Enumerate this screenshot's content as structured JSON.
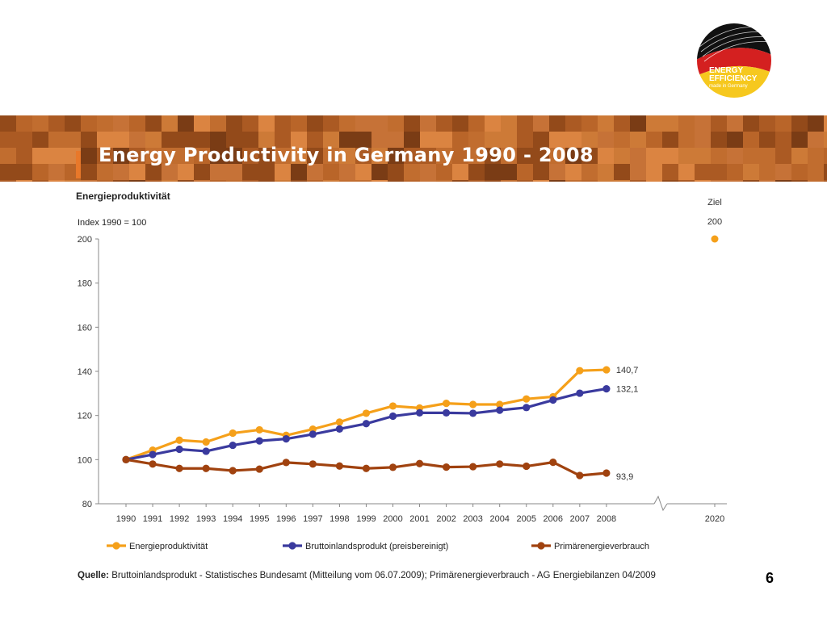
{
  "logo": {
    "line1": "ENERGY",
    "line2": "EFFICIENCY",
    "line3": "made in Germany"
  },
  "header": {
    "title": "Energy Productivity in Germany 1990 - 2008"
  },
  "page_number": "6",
  "source": {
    "label": "Quelle:",
    "text": "Bruttoinlandsprodukt - Statistisches Bundesamt (Mitteilung vom 06.07.2009); Primärenergieverbrauch - AG Energiebilanzen 04/2009"
  },
  "colors": {
    "banner": "#b8652a",
    "energieproduktivitaet": "#f5a01a",
    "bip": "#3a3a9e",
    "primaer": "#a0420f"
  },
  "chart_data": {
    "type": "line",
    "title": "Energieproduktivität",
    "subtitle": "Index 1990 = 100",
    "ylim": [
      80,
      200
    ],
    "yticks": [
      80,
      100,
      120,
      140,
      160,
      180,
      200
    ],
    "categories": [
      "1990",
      "1991",
      "1992",
      "1993",
      "1994",
      "1995",
      "1996",
      "1997",
      "1998",
      "1999",
      "2000",
      "2001",
      "2002",
      "2003",
      "2004",
      "2005",
      "2006",
      "2007",
      "2008"
    ],
    "extra_category": "2020",
    "target": {
      "label": "Ziel",
      "value_label": "200",
      "x": "2020",
      "y": 200
    },
    "series": [
      {
        "name": "Energieproduktivität",
        "color": "#f5a01a",
        "values": [
          100,
          104.3,
          108.8,
          108.0,
          112.0,
          113.5,
          111.0,
          113.8,
          117.0,
          121.0,
          124.3,
          123.4,
          125.5,
          125.0,
          125.0,
          127.5,
          128.5,
          140.3,
          140.7
        ],
        "end_label": "140,7"
      },
      {
        "name": "Bruttoinlandsprodukt (preisbereinigt)",
        "color": "#3a3a9e",
        "values": [
          100,
          102.3,
          104.7,
          103.8,
          106.5,
          108.5,
          109.4,
          111.5,
          113.9,
          116.3,
          119.7,
          121.2,
          121.2,
          121.0,
          122.4,
          123.6,
          127.0,
          130.1,
          132.1
        ],
        "end_label": "132,1"
      },
      {
        "name": "Primärenergieverbrauch",
        "color": "#a0420f",
        "values": [
          100,
          98.0,
          96.0,
          96.0,
          95.0,
          95.7,
          98.7,
          98.0,
          97.1,
          96.0,
          96.5,
          98.2,
          96.6,
          96.8,
          98.0,
          97.0,
          98.8,
          92.8,
          93.9
        ],
        "end_label": "93,9"
      }
    ],
    "legend_position": "bottom"
  }
}
